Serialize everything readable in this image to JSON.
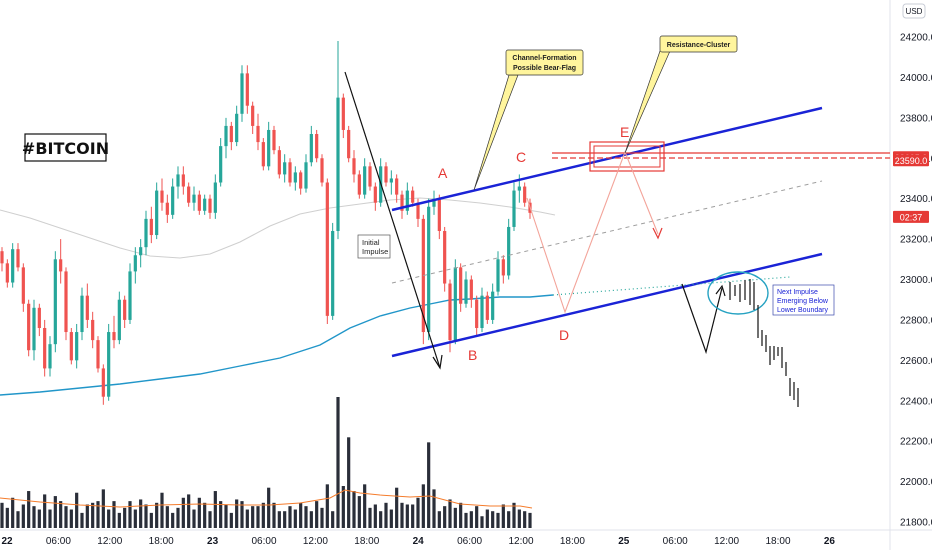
{
  "chart_data": {
    "type": "candlestick",
    "title": "#BITCOIN",
    "currency_badge": "USD",
    "y_axis": {
      "ticks": [
        24200,
        24000,
        23800,
        23600,
        23400,
        23200,
        23000,
        22800,
        22600,
        22400,
        22200,
        22000,
        21800
      ],
      "tick_labels": [
        "24200.0",
        "24000.0",
        "23800.0",
        "23600.0",
        "23400.0",
        "23200.0",
        "23000.0",
        "22800.0",
        "22600.0",
        "22400.0",
        "22200.0",
        "22000.0",
        "21800.0"
      ],
      "range": [
        21750,
        24330
      ]
    },
    "x_axis": {
      "tick_labels": [
        "22",
        "06:00",
        "12:00",
        "18:00",
        "23",
        "06:00",
        "12:00",
        "18:00",
        "24",
        "06:00",
        "12:00",
        "18:00",
        "25",
        "06:00",
        "12:00",
        "18:00",
        "26"
      ],
      "bold_labels": [
        "22",
        "23",
        "24",
        "25",
        "26"
      ]
    },
    "price_labels": [
      {
        "text": "23605.0",
        "value": 23605,
        "color": "#e53935"
      },
      {
        "text": "23590.0",
        "value": 23590,
        "color": "#e53935"
      },
      {
        "text": "02:37",
        "value": 23310,
        "color": "#e53935"
      }
    ],
    "waypoints": [
      {
        "label": "A",
        "price": 23480
      },
      {
        "label": "B",
        "price": 22620
      },
      {
        "label": "C",
        "price": 23570
      },
      {
        "label": "D",
        "price": 22740
      },
      {
        "label": "E",
        "price": 23700
      }
    ],
    "annotations": {
      "channel": "Channel-Formation\nPossible Bear-Flag",
      "resistance": "Resistance-Cluster",
      "impulse": "Initial\nImpulse",
      "next": "Next Impulse\nEmerging Below\nLower Boundary"
    },
    "series": [
      {
        "name": "candles",
        "values": [
          [
            23140,
            23160,
            23040,
            23080
          ],
          [
            23080,
            23100,
            22960,
            22985
          ],
          [
            22985,
            23180,
            22960,
            23150
          ],
          [
            23150,
            23180,
            23040,
            23060
          ],
          [
            23060,
            23080,
            22840,
            22880
          ],
          [
            22880,
            22900,
            22620,
            22650
          ],
          [
            22650,
            22900,
            22600,
            22860
          ],
          [
            22860,
            22880,
            22720,
            22760
          ],
          [
            22760,
            22800,
            22520,
            22560
          ],
          [
            22560,
            22720,
            22520,
            22680
          ],
          [
            22680,
            23140,
            22640,
            23100
          ],
          [
            23100,
            23200,
            22980,
            23040
          ],
          [
            23040,
            23060,
            22700,
            22740
          ],
          [
            22740,
            22760,
            22580,
            22600
          ],
          [
            22600,
            22780,
            22560,
            22740
          ],
          [
            22740,
            22960,
            22700,
            22920
          ],
          [
            22920,
            22980,
            22760,
            22800
          ],
          [
            22800,
            22840,
            22660,
            22700
          ],
          [
            22700,
            22720,
            22540,
            22560
          ],
          [
            22560,
            22580,
            22380,
            22420
          ],
          [
            22420,
            22780,
            22400,
            22740
          ],
          [
            22740,
            22820,
            22660,
            22700
          ],
          [
            22700,
            22940,
            22680,
            22900
          ],
          [
            22900,
            22920,
            22760,
            22800
          ],
          [
            22800,
            23080,
            22780,
            23040
          ],
          [
            23040,
            23160,
            22980,
            23120
          ],
          [
            23120,
            23200,
            23060,
            23160
          ],
          [
            23160,
            23340,
            23120,
            23300
          ],
          [
            23300,
            23360,
            23180,
            23220
          ],
          [
            23220,
            23480,
            23200,
            23440
          ],
          [
            23440,
            23500,
            23340,
            23380
          ],
          [
            23380,
            23420,
            23280,
            23320
          ],
          [
            23320,
            23500,
            23300,
            23460
          ],
          [
            23460,
            23560,
            23400,
            23520
          ],
          [
            23520,
            23560,
            23420,
            23460
          ],
          [
            23460,
            23480,
            23360,
            23380
          ],
          [
            23380,
            23460,
            23340,
            23420
          ],
          [
            23420,
            23440,
            23320,
            23340
          ],
          [
            23340,
            23420,
            23320,
            23400
          ],
          [
            23400,
            23420,
            23300,
            23330
          ],
          [
            23330,
            23520,
            23300,
            23480
          ],
          [
            23480,
            23700,
            23460,
            23660
          ],
          [
            23660,
            23800,
            23600,
            23760
          ],
          [
            23760,
            23780,
            23640,
            23680
          ],
          [
            23680,
            23860,
            23660,
            23820
          ],
          [
            23820,
            24060,
            23780,
            24020
          ],
          [
            24020,
            24060,
            23820,
            23860
          ],
          [
            23860,
            23880,
            23720,
            23760
          ],
          [
            23760,
            23820,
            23640,
            23680
          ],
          [
            23680,
            23700,
            23540,
            23560
          ],
          [
            23560,
            23780,
            23540,
            23740
          ],
          [
            23740,
            23760,
            23620,
            23640
          ],
          [
            23640,
            23660,
            23500,
            23520
          ],
          [
            23520,
            23620,
            23480,
            23580
          ],
          [
            23580,
            23600,
            23460,
            23480
          ],
          [
            23480,
            23560,
            23440,
            23530
          ],
          [
            23530,
            23540,
            23420,
            23450
          ],
          [
            23450,
            23620,
            23430,
            23580
          ],
          [
            23580,
            23760,
            23560,
            23720
          ],
          [
            23720,
            23740,
            23580,
            23600
          ],
          [
            23600,
            23620,
            23460,
            23480
          ],
          [
            23480,
            23500,
            22780,
            22820
          ],
          [
            22820,
            23280,
            22800,
            23240
          ],
          [
            23240,
            24180,
            23200,
            23900
          ],
          [
            23900,
            23920,
            23700,
            23740
          ],
          [
            23740,
            23760,
            23580,
            23600
          ],
          [
            23600,
            23640,
            23480,
            23520
          ],
          [
            23520,
            23540,
            23400,
            23420
          ],
          [
            23420,
            23600,
            23400,
            23560
          ],
          [
            23560,
            23580,
            23440,
            23460
          ],
          [
            23460,
            23480,
            23340,
            23380
          ],
          [
            23380,
            23600,
            23360,
            23560
          ],
          [
            23560,
            23580,
            23460,
            23480
          ],
          [
            23480,
            23540,
            23420,
            23500
          ],
          [
            23500,
            23520,
            23380,
            23420
          ],
          [
            23420,
            23440,
            23300,
            23340
          ],
          [
            23340,
            23480,
            23320,
            23440
          ],
          [
            23440,
            23460,
            23360,
            23380
          ],
          [
            23380,
            23400,
            23260,
            23300
          ],
          [
            23300,
            23320,
            22680,
            22740
          ],
          [
            22740,
            23400,
            22700,
            23360
          ],
          [
            23360,
            23440,
            23320,
            23400
          ],
          [
            23400,
            23420,
            23200,
            23240
          ],
          [
            23240,
            23260,
            22940,
            22980
          ],
          [
            22980,
            23000,
            22640,
            22700
          ],
          [
            22700,
            23100,
            22680,
            23060
          ],
          [
            23060,
            23080,
            22840,
            22880
          ],
          [
            22880,
            23040,
            22860,
            23000
          ],
          [
            23000,
            23020,
            22860,
            22900
          ],
          [
            22900,
            22920,
            22720,
            22760
          ],
          [
            22760,
            22960,
            22740,
            22920
          ],
          [
            22920,
            22940,
            22780,
            22800
          ],
          [
            22800,
            22980,
            22780,
            22940
          ],
          [
            22940,
            23140,
            22920,
            23100
          ],
          [
            23100,
            23120,
            22980,
            23020
          ],
          [
            23020,
            23300,
            23000,
            23260
          ],
          [
            23260,
            23480,
            23240,
            23440
          ],
          [
            23440,
            23520,
            23380,
            23460
          ],
          [
            23460,
            23480,
            23360,
            23380
          ],
          [
            23380,
            23400,
            23300,
            23330
          ]
        ]
      }
    ],
    "volume": [
      1500,
      1200,
      1800,
      1000,
      1400,
      2200,
      1300,
      1100,
      2000,
      1100,
      1900,
      1600,
      1300,
      1100,
      2100,
      900,
      1400,
      1500,
      1600,
      2300,
      1100,
      1600,
      900,
      1200,
      1600,
      1100,
      1700,
      1400,
      900,
      1500,
      2100,
      1300,
      900,
      1200,
      1800,
      2000,
      1100,
      1800,
      1500,
      1000,
      2200,
      1600,
      1400,
      900,
      1700,
      1600,
      1100,
      1300,
      1300,
      1500,
      2400,
      1500,
      1000,
      1000,
      1300,
      1100,
      1500,
      1300,
      1000,
      1600,
      1200,
      2600,
      1000,
      7800,
      2500,
      5400,
      2200,
      1900,
      2600,
      1200,
      1400,
      1000,
      1500,
      1100,
      2400,
      1500,
      1400,
      1400,
      1800,
      2600,
      5100,
      2300,
      1000,
      1300,
      1700,
      1200,
      1500,
      900,
      1000,
      1300,
      700,
      1100,
      1000,
      900,
      1400,
      1000,
      1500,
      1100,
      1000,
      900
    ]
  }
}
